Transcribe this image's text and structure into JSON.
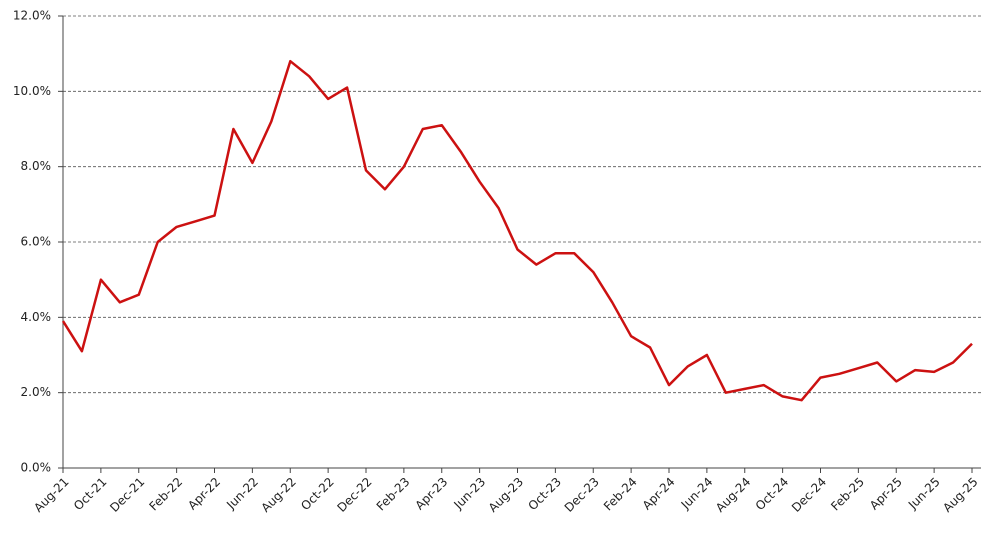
{
  "chart_data": {
    "type": "line",
    "categories": [
      "Aug-21",
      null,
      "Oct-21",
      null,
      "Dec-21",
      null,
      "Feb-22",
      null,
      "Apr-22",
      null,
      "Jun-22",
      null,
      "Aug-22",
      null,
      "Oct-22",
      null,
      "Dec-22",
      null,
      "Feb-23",
      null,
      "Apr-23",
      null,
      "Jun-23",
      null,
      "Aug-23",
      null,
      "Oct-23",
      null,
      "Dec-23",
      null,
      "Feb-24",
      null,
      "Apr-24",
      null,
      "Jun-24",
      null,
      "Aug-24",
      null,
      "Oct-24",
      null,
      "Dec-24",
      null,
      "Feb-25",
      null,
      "Apr-25",
      null,
      "Jun-25",
      null,
      "Aug-25"
    ],
    "series": [
      {
        "color": "#cc1111",
        "values": [
          3.9,
          3.1,
          5.0,
          4.4,
          4.6,
          6.0,
          6.4,
          6.55,
          6.7,
          9.0,
          8.1,
          9.2,
          10.8,
          10.4,
          9.8,
          10.1,
          7.9,
          7.4,
          8.0,
          9.0,
          9.1,
          8.4,
          7.6,
          6.9,
          5.8,
          5.4,
          5.7,
          5.7,
          5.2,
          4.4,
          3.5,
          3.2,
          2.2,
          2.7,
          3.0,
          2.0,
          2.1,
          2.2,
          1.9,
          1.8,
          2.4,
          2.5,
          2.65,
          2.8,
          2.3,
          2.6,
          2.55,
          2.8,
          3.3
        ]
      }
    ],
    "ylim": [
      0,
      12
    ],
    "yticks": [
      {
        "value": 0,
        "label": "0.0%"
      },
      {
        "value": 2,
        "label": "2.0%"
      },
      {
        "value": 4,
        "label": "4.0%"
      },
      {
        "value": 6,
        "label": "6.0%"
      },
      {
        "value": 8,
        "label": "8.0%"
      },
      {
        "value": 10,
        "label": "10.0%"
      },
      {
        "value": 12,
        "label": "12.0%"
      }
    ],
    "grid": true
  }
}
